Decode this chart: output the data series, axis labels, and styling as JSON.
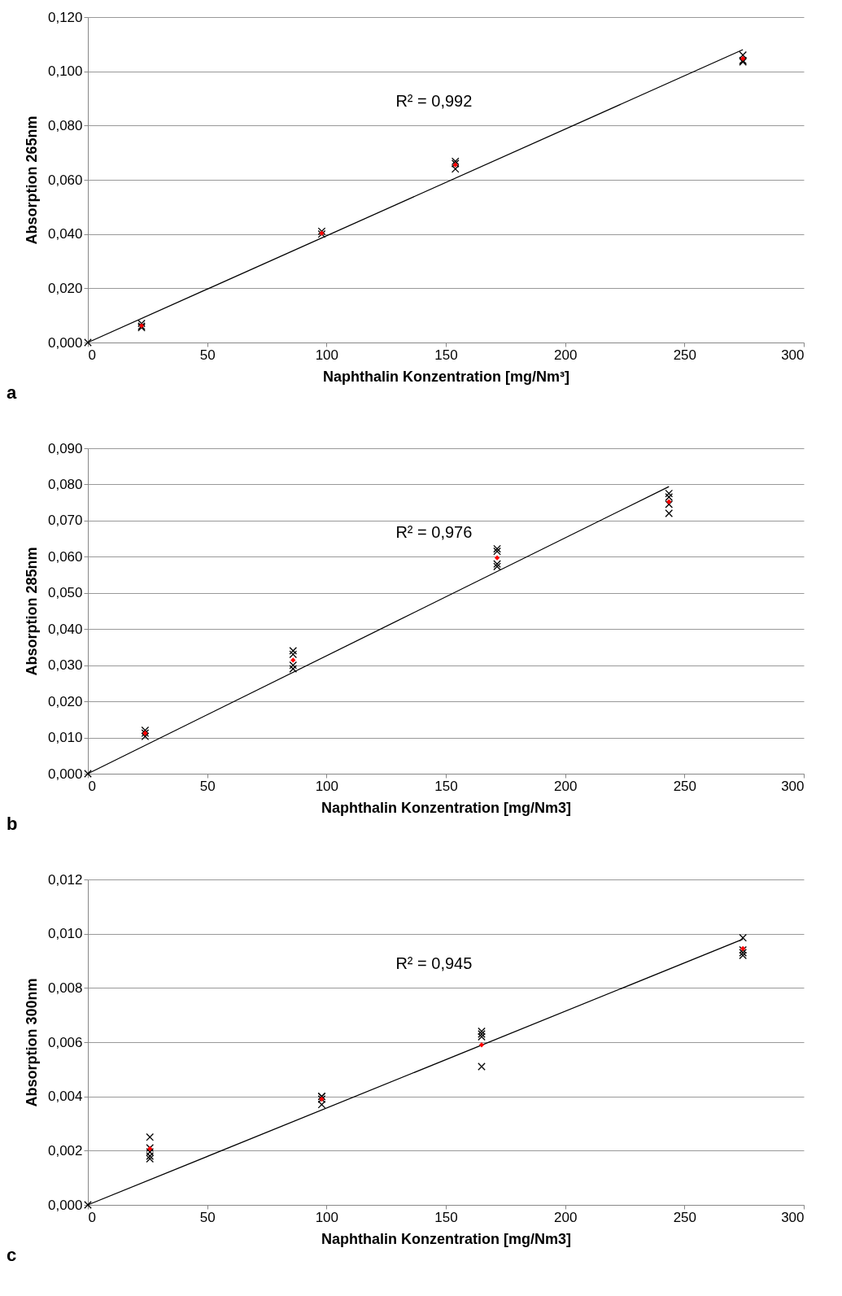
{
  "chart_data": [
    {
      "type": "scatter",
      "xlabel": "Naphthalin Konzentration [mg/Nm³]",
      "ylabel": "Absorption 265nm",
      "annotations": [
        "R² = 0,992",
        "a"
      ],
      "grid": "y",
      "xlim": [
        0,
        300
      ],
      "xticks": [
        0,
        50,
        100,
        150,
        200,
        250,
        300
      ],
      "ylim": [
        0,
        0.12
      ],
      "yticks": [
        {
          "value": 0,
          "label": "0,000"
        },
        {
          "value": 0.02,
          "label": "0,020"
        },
        {
          "value": 0.04,
          "label": "0,040"
        },
        {
          "value": 0.06,
          "label": "0,060"
        },
        {
          "value": 0.08,
          "label": "0,080"
        },
        {
          "value": 0.1,
          "label": "0,100"
        },
        {
          "value": 0.12,
          "label": "0,120"
        }
      ],
      "series": [
        {
          "type": "line",
          "color": "#000000",
          "marker": "none",
          "x": [
            0,
            274.5
          ],
          "values": [
            0,
            0.108
          ]
        },
        {
          "color": "#000000",
          "marker": "cross",
          "x": [
            0,
            22.5,
            22.5,
            22.5,
            98,
            98,
            154,
            154,
            154,
            274.5,
            274.5,
            274.5
          ],
          "values": [
            0,
            0.007,
            0.006,
            0.0055,
            0.041,
            0.04,
            0.0668,
            0.066,
            0.064,
            0.106,
            0.104,
            0.1035
          ]
        },
        {
          "color": "#ff0000",
          "marker": "diamond",
          "x": [
            22.5,
            98,
            154,
            274.5
          ],
          "values": [
            0.0062,
            0.0403,
            0.0655,
            0.1047
          ]
        }
      ]
    },
    {
      "type": "scatter",
      "xlabel": "Naphthalin Konzentration [mg/Nm3]",
      "ylabel": "Absorption 285nm",
      "annotations": [
        "R² = 0,976",
        "b"
      ],
      "grid": "y",
      "xlim": [
        0,
        300
      ],
      "xticks": [
        0,
        50,
        100,
        150,
        200,
        250,
        300
      ],
      "ylim": [
        0,
        0.09
      ],
      "yticks": [
        {
          "value": 0,
          "label": "0,000"
        },
        {
          "value": 0.01,
          "label": "0,010"
        },
        {
          "value": 0.02,
          "label": "0,020"
        },
        {
          "value": 0.03,
          "label": "0,030"
        },
        {
          "value": 0.04,
          "label": "0,040"
        },
        {
          "value": 0.05,
          "label": "0,050"
        },
        {
          "value": 0.06,
          "label": "0,060"
        },
        {
          "value": 0.07,
          "label": "0,070"
        },
        {
          "value": 0.08,
          "label": "0,080"
        },
        {
          "value": 0.09,
          "label": "0,090"
        }
      ],
      "series": [
        {
          "type": "line",
          "color": "#000000",
          "marker": "none",
          "x": [
            0,
            243.5
          ],
          "values": [
            0,
            0.0794
          ]
        },
        {
          "color": "#000000",
          "marker": "cross",
          "x": [
            0,
            24,
            24,
            24,
            86,
            86,
            86,
            86,
            171.5,
            171.5,
            171.5,
            171.5,
            243.5,
            243.5,
            243.5,
            243.5
          ],
          "values": [
            0,
            0.012,
            0.0112,
            0.0103,
            0.034,
            0.033,
            0.03,
            0.029,
            0.0622,
            0.0615,
            0.058,
            0.0573,
            0.0775,
            0.0765,
            0.0745,
            0.072
          ]
        },
        {
          "color": "#ff0000",
          "marker": "diamond",
          "x": [
            24,
            86,
            171.5,
            243.5
          ],
          "values": [
            0.0112,
            0.0314,
            0.0597,
            0.0752
          ]
        }
      ]
    },
    {
      "type": "scatter",
      "xlabel": "Naphthalin Konzentration [mg/Nm3]",
      "ylabel": "Absorption 300nm",
      "annotations": [
        "R² = 0,945",
        "c"
      ],
      "grid": "y",
      "xlim": [
        0,
        300
      ],
      "xticks": [
        0,
        50,
        100,
        150,
        200,
        250,
        300
      ],
      "ylim": [
        0,
        0.012
      ],
      "yticks": [
        {
          "value": 0,
          "label": "0,000"
        },
        {
          "value": 0.002,
          "label": "0,002"
        },
        {
          "value": 0.004,
          "label": "0,004"
        },
        {
          "value": 0.006,
          "label": "0,006"
        },
        {
          "value": 0.008,
          "label": "0,008"
        },
        {
          "value": 0.01,
          "label": "0,010"
        },
        {
          "value": 0.012,
          "label": "0,012"
        }
      ],
      "series": [
        {
          "type": "line",
          "color": "#000000",
          "marker": "none",
          "x": [
            0,
            274.5
          ],
          "values": [
            0,
            0.0098
          ]
        },
        {
          "color": "#000000",
          "marker": "cross",
          "x": [
            0,
            26,
            26,
            26,
            26,
            26,
            98,
            98,
            98,
            98,
            165,
            165,
            165,
            165,
            274.5,
            274.5,
            274.5,
            274.5
          ],
          "values": [
            0,
            0.0025,
            0.0021,
            0.00195,
            0.0018,
            0.0017,
            0.004,
            0.004,
            0.0039,
            0.0037,
            0.0064,
            0.0063,
            0.0062,
            0.0051,
            0.00985,
            0.0094,
            0.0093,
            0.0092
          ]
        },
        {
          "color": "#ff0000",
          "marker": "diamond",
          "x": [
            26,
            98,
            165,
            274.5
          ],
          "values": [
            0.00207,
            0.0039,
            0.0059,
            0.00945
          ]
        }
      ]
    }
  ]
}
